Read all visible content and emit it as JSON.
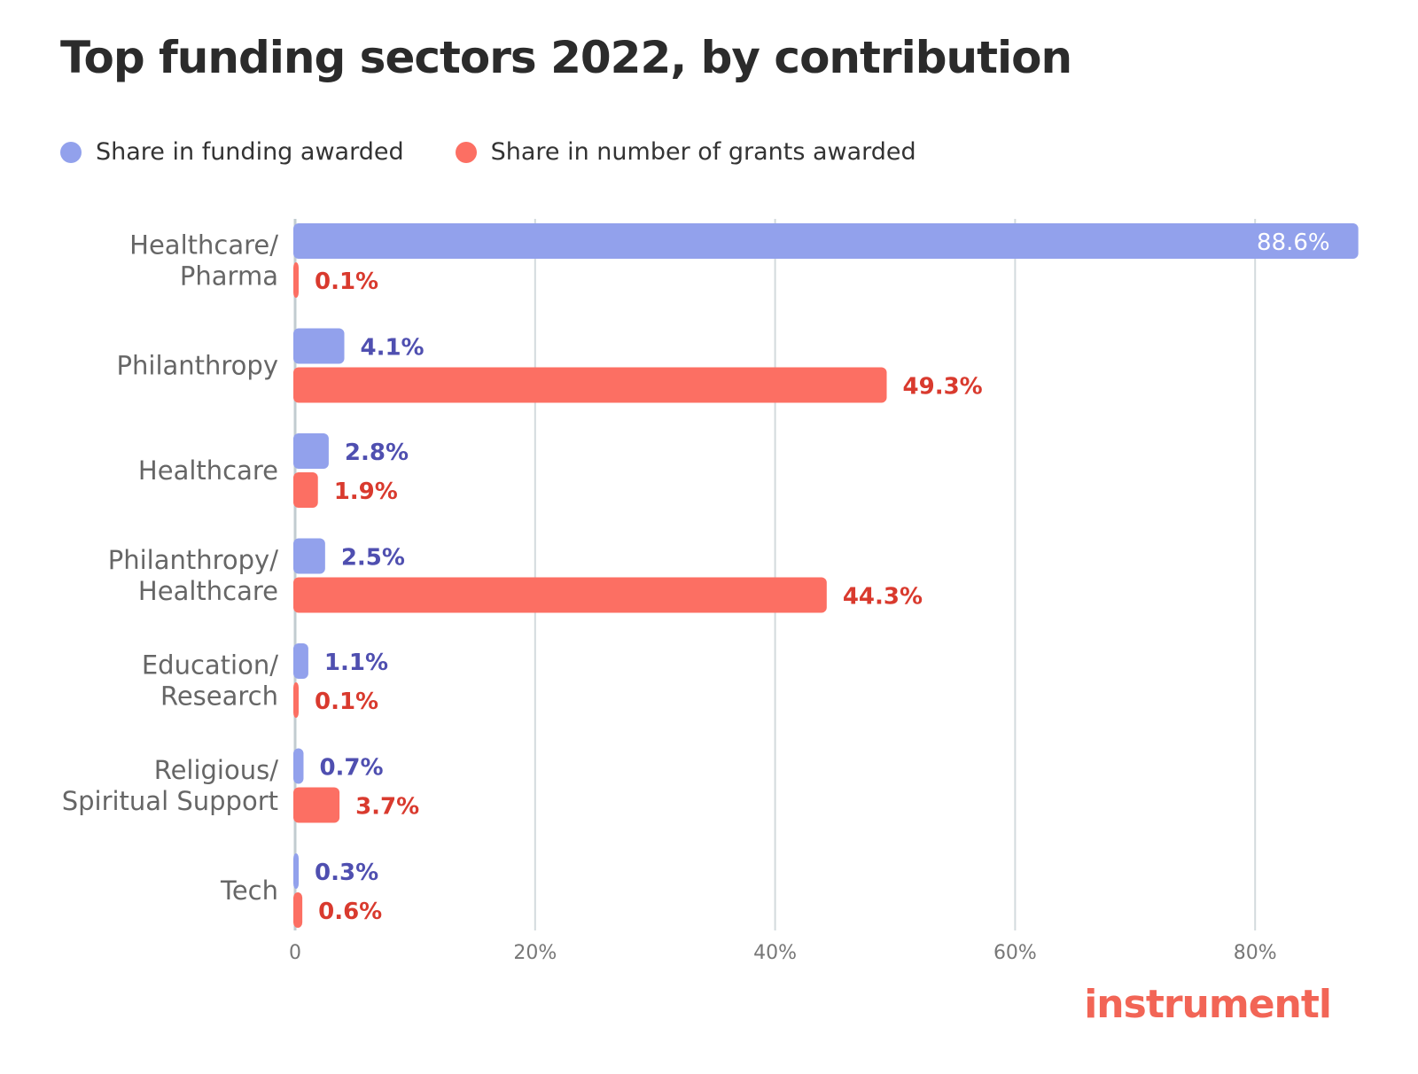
{
  "chart_data": {
    "type": "bar",
    "orientation": "horizontal",
    "title": "Top funding sectors 2022, by contribution",
    "categories": [
      [
        "Healthcare/",
        "Pharma"
      ],
      [
        "Philanthropy"
      ],
      [
        "Healthcare"
      ],
      [
        "Philanthropy/",
        "Healthcare"
      ],
      [
        "Education/",
        "Research"
      ],
      [
        "Religious/",
        "Spiritual Support"
      ],
      [
        "Tech"
      ]
    ],
    "series": [
      {
        "name": "Share in funding awarded",
        "color": "#92a1ec",
        "label_color": "#4f4fb0",
        "values": [
          88.6,
          4.1,
          2.8,
          2.5,
          1.1,
          0.7,
          0.3
        ],
        "labels": [
          "88.6%",
          "4.1%",
          "2.8%",
          "2.5%",
          "1.1%",
          "0.7%",
          "0.3%"
        ]
      },
      {
        "name": "Share in number of grants awarded",
        "color": "#fc6f63",
        "label_color": "#d93a2e",
        "values": [
          0.1,
          49.3,
          1.9,
          44.3,
          0.1,
          3.7,
          0.6
        ],
        "labels": [
          "0.1%",
          "49.3%",
          "1.9%",
          "44.3%",
          "0.1%",
          "3.7%",
          "0.6%"
        ]
      }
    ],
    "xlim": [
      0,
      90
    ],
    "xticks": [
      0,
      20,
      40,
      60,
      80
    ],
    "xtick_labels": [
      "0",
      "20%",
      "40%",
      "60%",
      "80%"
    ],
    "grid": true,
    "legend_position": "top-left"
  },
  "brand": "instrumentl"
}
